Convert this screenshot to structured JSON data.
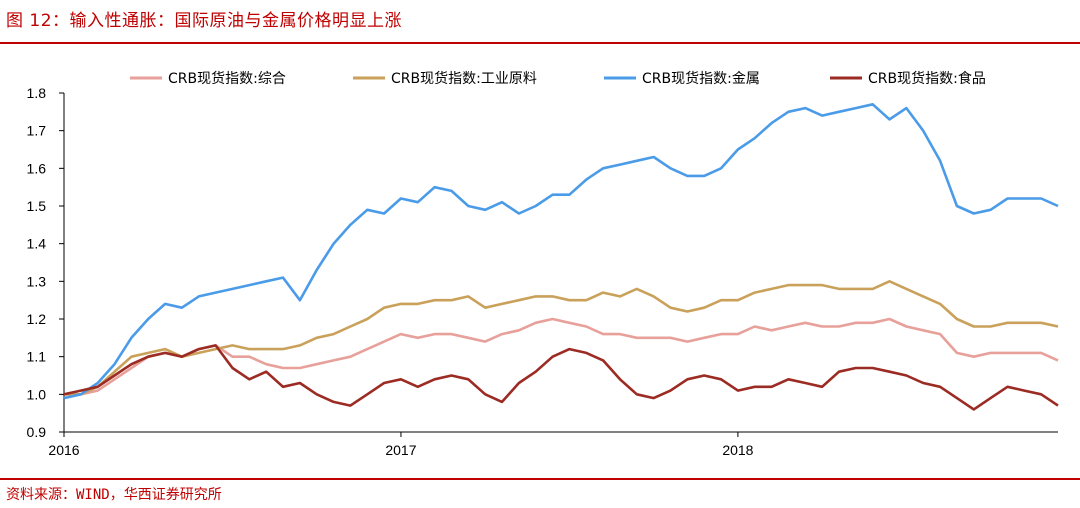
{
  "figure_title": "图 12：输入性通胀：国际原油与金属价格明显上涨",
  "source_note": "资料来源：WIND，华西证券研究所",
  "colors": {
    "accent": "#c00000",
    "composite": "#e8a09a",
    "industrial": "#c9a15a",
    "metals": "#4a9be8",
    "food": "#9b2b23"
  },
  "chart_data": {
    "type": "line",
    "title": "",
    "xlabel": "",
    "ylabel": "",
    "ylim": [
      0.9,
      1.8
    ],
    "xlim": [
      2016.0,
      2018.95
    ],
    "yticks": [
      "1.8",
      "1.7",
      "1.6",
      "1.5",
      "1.4",
      "1.3",
      "1.2",
      "1.1",
      "1.0",
      "0.9"
    ],
    "ytick_values": [
      1.8,
      1.7,
      1.6,
      1.5,
      1.4,
      1.3,
      1.2,
      1.1,
      1.0,
      0.9
    ],
    "xticks": [
      "2016",
      "2017",
      "2018"
    ],
    "xtick_values": [
      2016.0,
      2017.0,
      2018.0
    ],
    "grid": false,
    "legend_position": "top",
    "series": [
      {
        "name": "CRB现货指数:综合",
        "color": "#e8a09a",
        "x": [
          2016.0,
          2016.05,
          2016.1,
          2016.15,
          2016.2,
          2016.25,
          2016.3,
          2016.35,
          2016.4,
          2016.45,
          2016.5,
          2016.55,
          2016.6,
          2016.65,
          2016.7,
          2016.75,
          2016.8,
          2016.85,
          2016.9,
          2016.95,
          2017.0,
          2017.05,
          2017.1,
          2017.15,
          2017.2,
          2017.25,
          2017.3,
          2017.35,
          2017.4,
          2017.45,
          2017.5,
          2017.55,
          2017.6,
          2017.65,
          2017.7,
          2017.75,
          2017.8,
          2017.85,
          2017.9,
          2017.95,
          2018.0,
          2018.05,
          2018.1,
          2018.15,
          2018.2,
          2018.25,
          2018.3,
          2018.35,
          2018.4,
          2018.45,
          2018.5,
          2018.55,
          2018.6,
          2018.65,
          2018.7,
          2018.75,
          2018.8,
          2018.85,
          2018.9,
          2018.95
        ],
        "values": [
          1.0,
          1.0,
          1.01,
          1.04,
          1.07,
          1.1,
          1.11,
          1.1,
          1.12,
          1.13,
          1.1,
          1.1,
          1.08,
          1.07,
          1.07,
          1.08,
          1.09,
          1.1,
          1.12,
          1.14,
          1.16,
          1.15,
          1.16,
          1.16,
          1.15,
          1.14,
          1.16,
          1.17,
          1.19,
          1.2,
          1.19,
          1.18,
          1.16,
          1.16,
          1.15,
          1.15,
          1.15,
          1.14,
          1.15,
          1.16,
          1.16,
          1.18,
          1.17,
          1.18,
          1.19,
          1.18,
          1.18,
          1.19,
          1.19,
          1.2,
          1.18,
          1.17,
          1.16,
          1.11,
          1.1,
          1.11,
          1.11,
          1.11,
          1.11,
          1.09
        ]
      },
      {
        "name": "CRB现货指数:工业原料",
        "color": "#c9a15a",
        "x": [
          2016.0,
          2016.05,
          2016.1,
          2016.15,
          2016.2,
          2016.25,
          2016.3,
          2016.35,
          2016.4,
          2016.45,
          2016.5,
          2016.55,
          2016.6,
          2016.65,
          2016.7,
          2016.75,
          2016.8,
          2016.85,
          2016.9,
          2016.95,
          2017.0,
          2017.05,
          2017.1,
          2017.15,
          2017.2,
          2017.25,
          2017.3,
          2017.35,
          2017.4,
          2017.45,
          2017.5,
          2017.55,
          2017.6,
          2017.65,
          2017.7,
          2017.75,
          2017.8,
          2017.85,
          2017.9,
          2017.95,
          2018.0,
          2018.05,
          2018.1,
          2018.15,
          2018.2,
          2018.25,
          2018.3,
          2018.35,
          2018.4,
          2018.45,
          2018.5,
          2018.55,
          2018.6,
          2018.65,
          2018.7,
          2018.75,
          2018.8,
          2018.85,
          2018.9,
          2018.95
        ],
        "values": [
          1.0,
          1.0,
          1.02,
          1.06,
          1.1,
          1.11,
          1.12,
          1.1,
          1.11,
          1.12,
          1.13,
          1.12,
          1.12,
          1.12,
          1.13,
          1.15,
          1.16,
          1.18,
          1.2,
          1.23,
          1.24,
          1.24,
          1.25,
          1.25,
          1.26,
          1.23,
          1.24,
          1.25,
          1.26,
          1.26,
          1.25,
          1.25,
          1.27,
          1.26,
          1.28,
          1.26,
          1.23,
          1.22,
          1.23,
          1.25,
          1.25,
          1.27,
          1.28,
          1.29,
          1.29,
          1.29,
          1.28,
          1.28,
          1.28,
          1.3,
          1.28,
          1.26,
          1.24,
          1.2,
          1.18,
          1.18,
          1.19,
          1.19,
          1.19,
          1.18
        ]
      },
      {
        "name": "CRB现货指数:金属",
        "color": "#4a9be8",
        "x": [
          2016.0,
          2016.05,
          2016.1,
          2016.15,
          2016.2,
          2016.25,
          2016.3,
          2016.35,
          2016.4,
          2016.45,
          2016.5,
          2016.55,
          2016.6,
          2016.65,
          2016.7,
          2016.75,
          2016.8,
          2016.85,
          2016.9,
          2016.95,
          2017.0,
          2017.05,
          2017.1,
          2017.15,
          2017.2,
          2017.25,
          2017.3,
          2017.35,
          2017.4,
          2017.45,
          2017.5,
          2017.55,
          2017.6,
          2017.65,
          2017.7,
          2017.75,
          2017.8,
          2017.85,
          2017.9,
          2017.95,
          2018.0,
          2018.05,
          2018.1,
          2018.15,
          2018.2,
          2018.25,
          2018.3,
          2018.35,
          2018.4,
          2018.45,
          2018.5,
          2018.55,
          2018.6,
          2018.65,
          2018.7,
          2018.75,
          2018.8,
          2018.85,
          2018.9,
          2018.95
        ],
        "values": [
          0.99,
          1.0,
          1.03,
          1.08,
          1.15,
          1.2,
          1.24,
          1.23,
          1.26,
          1.27,
          1.28,
          1.29,
          1.3,
          1.31,
          1.25,
          1.33,
          1.4,
          1.45,
          1.49,
          1.48,
          1.52,
          1.51,
          1.55,
          1.54,
          1.5,
          1.49,
          1.51,
          1.48,
          1.5,
          1.53,
          1.53,
          1.57,
          1.6,
          1.61,
          1.62,
          1.63,
          1.6,
          1.58,
          1.58,
          1.6,
          1.65,
          1.68,
          1.72,
          1.75,
          1.76,
          1.74,
          1.75,
          1.76,
          1.77,
          1.73,
          1.76,
          1.7,
          1.62,
          1.5,
          1.48,
          1.49,
          1.52,
          1.52,
          1.52,
          1.5
        ]
      },
      {
        "name": "CRB现货指数:食品",
        "color": "#9b2b23",
        "x": [
          2016.0,
          2016.05,
          2016.1,
          2016.15,
          2016.2,
          2016.25,
          2016.3,
          2016.35,
          2016.4,
          2016.45,
          2016.5,
          2016.55,
          2016.6,
          2016.65,
          2016.7,
          2016.75,
          2016.8,
          2016.85,
          2016.9,
          2016.95,
          2017.0,
          2017.05,
          2017.1,
          2017.15,
          2017.2,
          2017.25,
          2017.3,
          2017.35,
          2017.4,
          2017.45,
          2017.5,
          2017.55,
          2017.6,
          2017.65,
          2017.7,
          2017.75,
          2017.8,
          2017.85,
          2017.9,
          2017.95,
          2018.0,
          2018.05,
          2018.1,
          2018.15,
          2018.2,
          2018.25,
          2018.3,
          2018.35,
          2018.4,
          2018.45,
          2018.5,
          2018.55,
          2018.6,
          2018.65,
          2018.7,
          2018.75,
          2018.8,
          2018.85,
          2018.9,
          2018.95
        ],
        "values": [
          1.0,
          1.01,
          1.02,
          1.05,
          1.08,
          1.1,
          1.11,
          1.1,
          1.12,
          1.13,
          1.07,
          1.04,
          1.06,
          1.02,
          1.03,
          1.0,
          0.98,
          0.97,
          1.0,
          1.03,
          1.04,
          1.02,
          1.04,
          1.05,
          1.04,
          1.0,
          0.98,
          1.03,
          1.06,
          1.1,
          1.12,
          1.11,
          1.09,
          1.04,
          1.0,
          0.99,
          1.01,
          1.04,
          1.05,
          1.04,
          1.01,
          1.02,
          1.02,
          1.04,
          1.03,
          1.02,
          1.06,
          1.07,
          1.07,
          1.06,
          1.05,
          1.03,
          1.02,
          0.99,
          0.96,
          0.99,
          1.02,
          1.01,
          1.0,
          0.97
        ]
      }
    ]
  }
}
